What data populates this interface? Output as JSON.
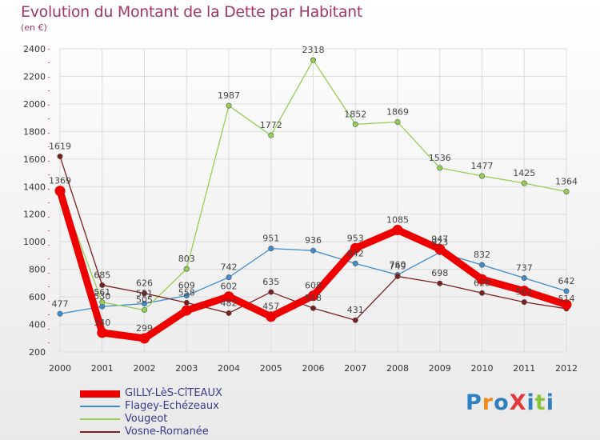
{
  "header": {
    "title": "Evolution du Montant de la Dette par Habitant",
    "subtitle": "(en €)"
  },
  "logo": {
    "text": "ProXiti",
    "colors": [
      "#2f7fc1",
      "#f08a1c",
      "#2f7fc1",
      "#e23a3a",
      "#2f7fc1",
      "#8cc43c",
      "#2f7fc1"
    ]
  },
  "chart_data": {
    "type": "line",
    "x": [
      2000,
      2001,
      2002,
      2003,
      2004,
      2005,
      2006,
      2007,
      2008,
      2009,
      2010,
      2011,
      2012
    ],
    "ylim": [
      200,
      2400
    ],
    "yticks": [
      200,
      400,
      600,
      800,
      1000,
      1200,
      1400,
      1600,
      1800,
      2000,
      2200,
      2400
    ],
    "grid": true,
    "legend_position": "bottom-left",
    "series": [
      {
        "name": "GILLY-LèS-CîTEAUX",
        "color": "#ee0000",
        "values": [
          1369,
          340,
          299,
          502,
          602,
          457,
          608,
          953,
          1085,
          947,
          727,
          643,
          544
        ],
        "labels": [
          "1369",
          "340",
          "299",
          "",
          "602",
          "457",
          "608",
          "953",
          "1085",
          "947",
          "",
          "",
          ""
        ]
      },
      {
        "name": "Flagey-Echézeaux",
        "color": "#3d8ccd",
        "values": [
          477,
          530,
          551,
          609,
          742,
          951,
          936,
          842,
          760,
          923,
          832,
          737,
          642
        ],
        "labels": [
          "477",
          "530",
          "551",
          "609",
          "742",
          "951",
          "936",
          "842",
          "760",
          "923",
          "832",
          "737",
          "642"
        ]
      },
      {
        "name": "Vougeot",
        "color": "#92d050",
        "values": [
          1377,
          561,
          505,
          803,
          1987,
          1772,
          2318,
          1852,
          1869,
          1536,
          1477,
          1425,
          1364
        ],
        "labels": [
          "",
          "561",
          "505",
          "803",
          "1987",
          "1772",
          "2318",
          "1852",
          "1869",
          "1536",
          "1477",
          "1425",
          "1364"
        ]
      },
      {
        "name": "Vosne-Romanée",
        "color": "#7a1e1e",
        "values": [
          1619,
          685,
          626,
          558,
          482,
          635,
          518,
          431,
          749,
          698,
          628,
          562,
          514
        ],
        "labels": [
          "1619",
          "685",
          "626",
          "558",
          "482",
          "635",
          "518",
          "431",
          "749",
          "698",
          "628",
          "562",
          "514"
        ]
      }
    ]
  }
}
